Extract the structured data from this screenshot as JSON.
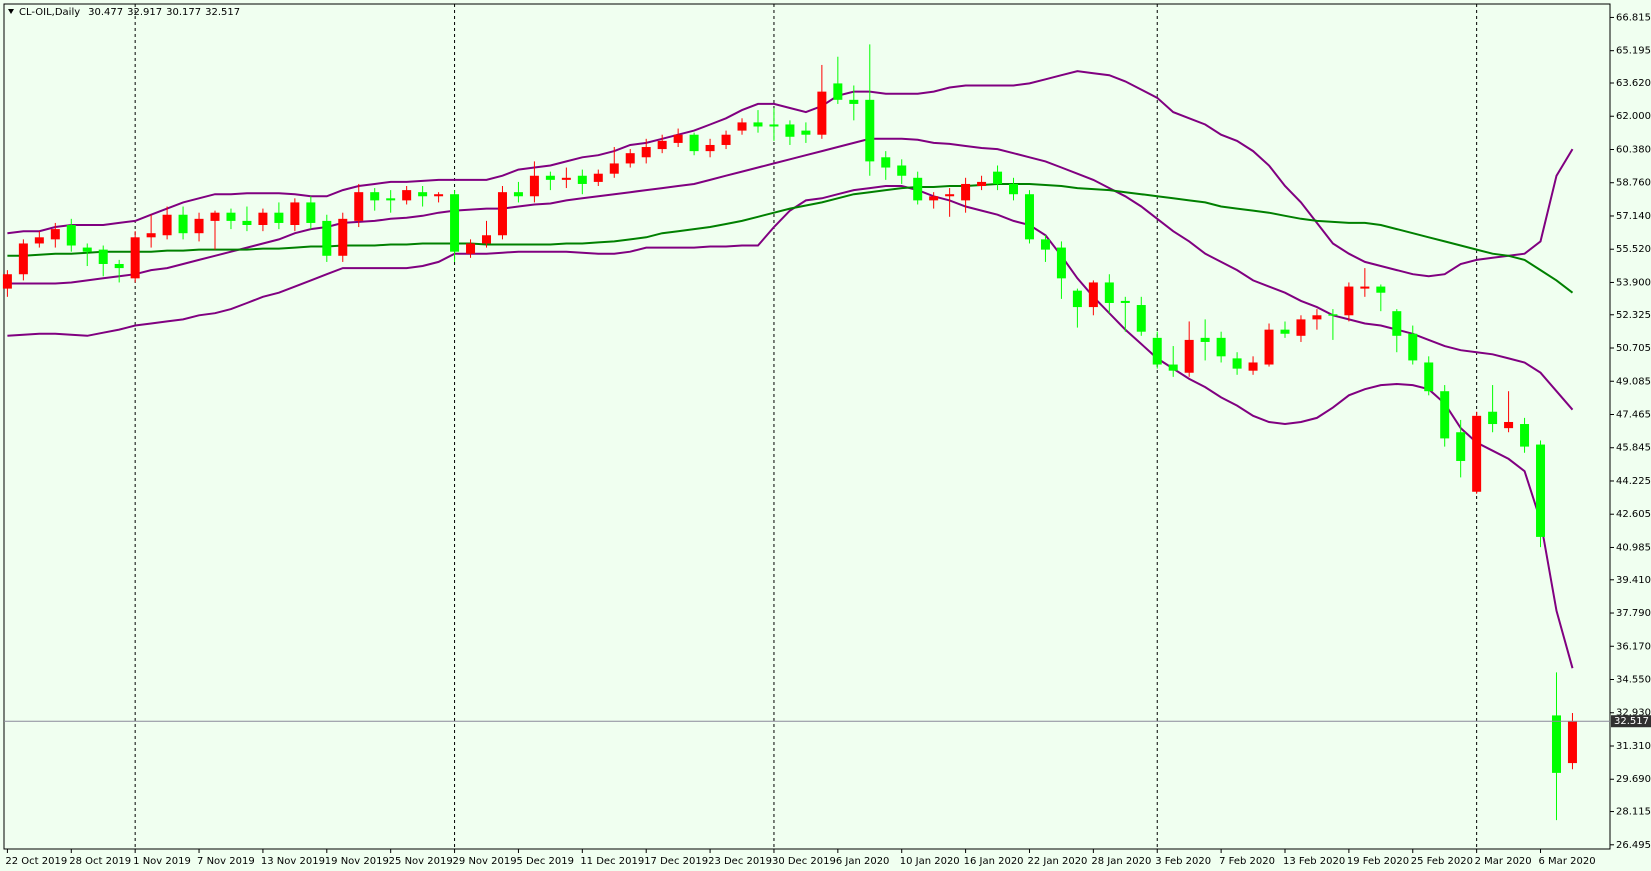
{
  "chart_data": {
    "type": "candlestick",
    "title": "CL-OIL,Daily",
    "categories": [
      "22 Oct 2019",
      null,
      null,
      null,
      "28 Oct 2019",
      null,
      null,
      null,
      "1 Nov 2019",
      null,
      null,
      null,
      "7 Nov 2019",
      null,
      null,
      null,
      "13 Nov 2019",
      null,
      null,
      null,
      "19 Nov 2019",
      null,
      null,
      null,
      "25 Nov 2019",
      null,
      null,
      null,
      "29 Nov 2019",
      null,
      null,
      null,
      "5 Dec 2019",
      null,
      null,
      null,
      "11 Dec 2019",
      null,
      null,
      null,
      "17 Dec 2019",
      null,
      null,
      null,
      "23 Dec 2019",
      null,
      null,
      null,
      "30 Dec 2019",
      null,
      null,
      null,
      "6 Jan 2020",
      null,
      null,
      null,
      "10 Jan 2020",
      null,
      null,
      null,
      "16 Jan 2020",
      null,
      null,
      null,
      "22 Jan 2020",
      null,
      null,
      null,
      "28 Jan 2020",
      null,
      null,
      null,
      "3 Feb 2020",
      null,
      null,
      null,
      "7 Feb 2020",
      null,
      null,
      null,
      "13 Feb 2020",
      null,
      null,
      null,
      "19 Feb 2020",
      null,
      null,
      null,
      "25 Feb 2020",
      null,
      null,
      null,
      "2 Mar 2020",
      null,
      null,
      null,
      "6 Mar 2020",
      null,
      null
    ],
    "open": [
      53.6,
      54.3,
      55.8,
      56.0,
      56.7,
      55.6,
      55.5,
      54.8,
      54.1,
      56.1,
      56.2,
      57.2,
      56.3,
      56.9,
      57.3,
      56.9,
      56.7,
      57.3,
      56.7,
      57.8,
      56.9,
      55.2,
      56.9,
      58.3,
      58.0,
      57.9,
      58.3,
      58.1,
      58.2,
      55.3,
      55.8,
      56.2,
      58.3,
      58.1,
      59.1,
      58.9,
      59.1,
      58.8,
      59.2,
      59.7,
      60.0,
      60.4,
      60.7,
      61.1,
      60.3,
      60.6,
      61.3,
      61.7,
      61.6,
      61.6,
      61.3,
      61.1,
      63.6,
      62.8,
      62.8,
      60.0,
      59.6,
      59.0,
      57.9,
      58.1,
      57.9,
      58.6,
      59.3,
      58.7,
      58.2,
      56.0,
      55.6,
      53.5,
      52.7,
      53.9,
      53.0,
      52.8,
      51.2,
      49.9,
      49.5,
      51.2,
      51.2,
      50.2,
      49.6,
      49.9,
      51.6,
      51.3,
      52.1,
      52.35,
      52.3,
      53.6,
      53.7,
      52.5,
      51.4,
      50.0,
      48.6,
      46.6,
      43.7,
      47.6,
      46.8,
      47.0,
      46.0,
      32.8,
      30.477
    ],
    "high": [
      54.5,
      56.0,
      56.4,
      56.8,
      57.0,
      55.8,
      55.7,
      55.0,
      56.4,
      57.2,
      57.6,
      57.6,
      57.3,
      57.4,
      57.5,
      57.6,
      57.5,
      57.8,
      58.0,
      58.1,
      57.2,
      57.3,
      58.7,
      58.5,
      58.4,
      58.6,
      58.6,
      58.3,
      58.4,
      56.0,
      56.9,
      58.6,
      58.8,
      59.8,
      59.3,
      59.5,
      59.4,
      59.4,
      60.5,
      60.4,
      60.9,
      61.1,
      61.4,
      61.2,
      60.9,
      61.3,
      61.9,
      62.3,
      62.4,
      61.8,
      61.7,
      64.5,
      64.9,
      63.5,
      65.5,
      60.3,
      59.9,
      59.3,
      58.3,
      58.5,
      59.0,
      59.1,
      59.6,
      59.0,
      58.4,
      56.2,
      55.9,
      53.6,
      54.0,
      54.3,
      53.2,
      53.2,
      51.5,
      50.8,
      52.0,
      52.1,
      51.5,
      50.5,
      50.3,
      51.9,
      52.0,
      52.3,
      52.6,
      52.6,
      53.9,
      54.6,
      53.8,
      52.6,
      51.8,
      50.3,
      48.9,
      47.2,
      47.6,
      48.9,
      48.6,
      47.3,
      46.2,
      34.9,
      32.917
    ],
    "low": [
      53.2,
      54.0,
      55.6,
      55.6,
      55.4,
      54.7,
      54.2,
      53.9,
      53.9,
      55.6,
      56.0,
      56.0,
      55.9,
      55.5,
      56.5,
      56.4,
      56.4,
      56.5,
      56.4,
      56.5,
      54.9,
      54.9,
      56.6,
      57.4,
      57.3,
      57.7,
      57.6,
      57.8,
      54.9,
      55.1,
      55.6,
      56.0,
      57.8,
      57.8,
      58.4,
      58.5,
      58.2,
      58.6,
      59.0,
      59.5,
      59.7,
      60.2,
      60.5,
      60.1,
      60.0,
      60.4,
      61.1,
      61.2,
      60.8,
      60.6,
      60.7,
      60.9,
      62.6,
      61.8,
      59.1,
      58.9,
      58.7,
      57.7,
      57.5,
      57.1,
      57.3,
      58.4,
      58.4,
      57.9,
      55.8,
      54.9,
      53.1,
      51.7,
      52.3,
      52.4,
      51.5,
      51.3,
      49.7,
      49.3,
      49.3,
      50.1,
      50.0,
      49.4,
      49.4,
      49.8,
      51.2,
      51.0,
      51.6,
      51.1,
      52.0,
      53.2,
      52.5,
      50.5,
      49.9,
      48.4,
      45.9,
      44.4,
      43.6,
      46.6,
      46.6,
      45.6,
      41.0,
      27.7,
      30.177
    ],
    "close": [
      54.3,
      55.8,
      56.1,
      56.5,
      55.7,
      55.4,
      54.8,
      54.6,
      56.1,
      56.3,
      57.2,
      56.3,
      57.0,
      57.3,
      56.9,
      56.7,
      57.3,
      56.8,
      57.8,
      56.8,
      55.2,
      57.0,
      58.3,
      57.9,
      57.9,
      58.4,
      58.1,
      58.2,
      55.4,
      55.8,
      56.2,
      58.3,
      58.1,
      59.1,
      58.9,
      59.0,
      58.7,
      59.2,
      59.7,
      60.2,
      60.5,
      60.8,
      61.1,
      60.3,
      60.6,
      61.1,
      61.7,
      61.5,
      61.5,
      61.0,
      61.1,
      63.2,
      62.8,
      62.6,
      59.8,
      59.5,
      59.1,
      57.9,
      58.1,
      58.2,
      58.7,
      58.8,
      58.7,
      58.2,
      56.0,
      55.5,
      54.1,
      52.7,
      53.9,
      52.9,
      52.9,
      51.5,
      49.9,
      49.6,
      51.1,
      51.0,
      50.3,
      49.7,
      50.0,
      51.6,
      51.4,
      52.1,
      52.3,
      52.28,
      53.7,
      53.7,
      53.4,
      51.3,
      50.1,
      48.6,
      46.3,
      45.2,
      47.4,
      47.0,
      47.1,
      45.9,
      41.5,
      30.0,
      32.517
    ],
    "up_color": "#ff0000",
    "down_color": "#00ff00",
    "lines": [
      {
        "color": "#800080",
        "values": [
          56.3,
          56.4,
          56.4,
          56.6,
          56.7,
          56.7,
          56.7,
          56.8,
          56.9,
          57.2,
          57.5,
          57.8,
          58.0,
          58.2,
          58.2,
          58.25,
          58.25,
          58.25,
          58.2,
          58.1,
          58.1,
          58.4,
          58.6,
          58.7,
          58.8,
          58.8,
          58.85,
          58.9,
          58.9,
          58.9,
          58.9,
          59.1,
          59.4,
          59.5,
          59.6,
          59.8,
          60.0,
          60.1,
          60.3,
          60.6,
          60.7,
          60.9,
          61.1,
          61.3,
          61.6,
          61.9,
          62.3,
          62.6,
          62.6,
          62.4,
          62.2,
          62.5,
          63.0,
          63.2,
          63.2,
          63.1,
          63.1,
          63.1,
          63.2,
          63.4,
          63.5,
          63.5,
          63.5,
          63.5,
          63.6,
          63.8,
          64.0,
          64.2,
          64.1,
          64.0,
          63.7,
          63.3,
          62.9,
          62.2,
          61.9,
          61.6,
          61.1,
          60.8,
          60.3,
          59.6,
          58.6,
          57.8,
          56.8,
          55.8,
          55.3,
          54.9,
          54.7,
          54.5,
          54.3,
          54.2,
          54.3,
          54.8,
          55.0,
          55.1,
          55.2,
          55.3,
          55.9,
          59.1,
          60.4
        ]
      },
      {
        "color": "#800080",
        "values": [
          53.85,
          53.85,
          53.85,
          53.85,
          53.9,
          54.0,
          54.1,
          54.2,
          54.3,
          54.5,
          54.6,
          54.8,
          55.0,
          55.2,
          55.4,
          55.6,
          55.8,
          56.0,
          56.3,
          56.5,
          56.6,
          56.8,
          56.85,
          56.9,
          57.0,
          57.05,
          57.15,
          57.3,
          57.4,
          57.45,
          57.5,
          57.5,
          57.6,
          57.7,
          57.75,
          57.9,
          58.0,
          58.1,
          58.2,
          58.3,
          58.4,
          58.5,
          58.6,
          58.7,
          58.9,
          59.1,
          59.3,
          59.5,
          59.7,
          59.9,
          60.1,
          60.3,
          60.5,
          60.7,
          60.9,
          60.9,
          60.9,
          60.85,
          60.7,
          60.65,
          60.55,
          60.45,
          60.4,
          60.2,
          60.0,
          59.8,
          59.5,
          59.2,
          58.9,
          58.5,
          58.1,
          57.6,
          57.0,
          56.4,
          55.9,
          55.3,
          54.9,
          54.5,
          54.0,
          53.7,
          53.4,
          53.0,
          52.7,
          52.3,
          52.1,
          51.9,
          51.8,
          51.6,
          51.4,
          51.1,
          50.8,
          50.6,
          50.5,
          50.4,
          50.2,
          50.0,
          49.5,
          48.6,
          47.7
        ]
      },
      {
        "color": "#800080",
        "values": [
          51.3,
          51.35,
          51.4,
          51.4,
          51.35,
          51.3,
          51.45,
          51.6,
          51.8,
          51.9,
          52.0,
          52.1,
          52.3,
          52.4,
          52.6,
          52.9,
          53.2,
          53.4,
          53.7,
          54.0,
          54.3,
          54.6,
          54.6,
          54.6,
          54.6,
          54.6,
          54.7,
          54.9,
          55.3,
          55.3,
          55.3,
          55.35,
          55.4,
          55.4,
          55.4,
          55.4,
          55.35,
          55.3,
          55.3,
          55.4,
          55.6,
          55.6,
          55.6,
          55.6,
          55.65,
          55.65,
          55.7,
          55.7,
          56.6,
          57.4,
          57.9,
          58.0,
          58.2,
          58.4,
          58.5,
          58.6,
          58.6,
          58.4,
          58.1,
          57.9,
          57.6,
          57.4,
          57.2,
          56.9,
          56.7,
          56.2,
          55.2,
          54.1,
          53.2,
          52.4,
          51.6,
          50.9,
          50.2,
          49.7,
          49.2,
          48.8,
          48.3,
          47.9,
          47.4,
          47.1,
          47.0,
          47.1,
          47.3,
          47.8,
          48.4,
          48.7,
          48.9,
          48.95,
          48.9,
          48.7,
          48.0,
          46.8,
          46.1,
          45.7,
          45.3,
          44.7,
          42.3,
          37.9,
          35.1
        ]
      },
      {
        "color": "#008000",
        "values": [
          55.2,
          55.2,
          55.25,
          55.3,
          55.3,
          55.35,
          55.4,
          55.4,
          55.4,
          55.4,
          55.45,
          55.45,
          55.5,
          55.5,
          55.5,
          55.5,
          55.55,
          55.55,
          55.6,
          55.65,
          55.65,
          55.7,
          55.7,
          55.7,
          55.75,
          55.75,
          55.8,
          55.8,
          55.8,
          55.8,
          55.75,
          55.75,
          55.75,
          55.75,
          55.75,
          55.8,
          55.8,
          55.85,
          55.9,
          56.0,
          56.1,
          56.3,
          56.4,
          56.5,
          56.6,
          56.75,
          56.9,
          57.1,
          57.3,
          57.5,
          57.65,
          57.8,
          58.0,
          58.2,
          58.3,
          58.4,
          58.5,
          58.55,
          58.55,
          58.6,
          58.6,
          58.65,
          58.7,
          58.7,
          58.7,
          58.65,
          58.6,
          58.5,
          58.45,
          58.4,
          58.3,
          58.2,
          58.1,
          58.0,
          57.9,
          57.8,
          57.6,
          57.5,
          57.4,
          57.3,
          57.15,
          57.0,
          56.9,
          56.85,
          56.8,
          56.8,
          56.7,
          56.5,
          56.3,
          56.1,
          55.9,
          55.7,
          55.5,
          55.3,
          55.2,
          55.0,
          54.5,
          54.0,
          53.4
        ]
      }
    ],
    "bid": 32.517,
    "ylim": [
      26.29,
      67.47
    ],
    "yticks": [
      66.815,
      65.195,
      {
        "value": 63.62,
        "label": "63.620"
      },
      {
        "value": 62,
        "label": "62.000"
      },
      {
        "value": 60.38,
        "label": "60.380"
      },
      {
        "value": 58.76,
        "label": "58.760"
      },
      {
        "value": 57.14,
        "label": "57.140"
      },
      {
        "value": 55.52,
        "label": "55.520"
      },
      {
        "value": 53.9,
        "label": "53.900"
      },
      52.325,
      50.705,
      49.085,
      47.465,
      45.845,
      44.225,
      42.605,
      40.985,
      {
        "value": 39.41,
        "label": "39.410"
      },
      {
        "value": 37.79,
        "label": "37.790"
      },
      {
        "value": 36.17,
        "label": "36.170"
      },
      {
        "value": 34.55,
        "label": "34.550"
      },
      {
        "value": 32.93,
        "label": "32.930"
      },
      {
        "value": 31.31,
        "label": "31.310"
      },
      {
        "value": 29.69,
        "label": "29.690"
      },
      28.115,
      26.495
    ],
    "grid": false
  }
}
